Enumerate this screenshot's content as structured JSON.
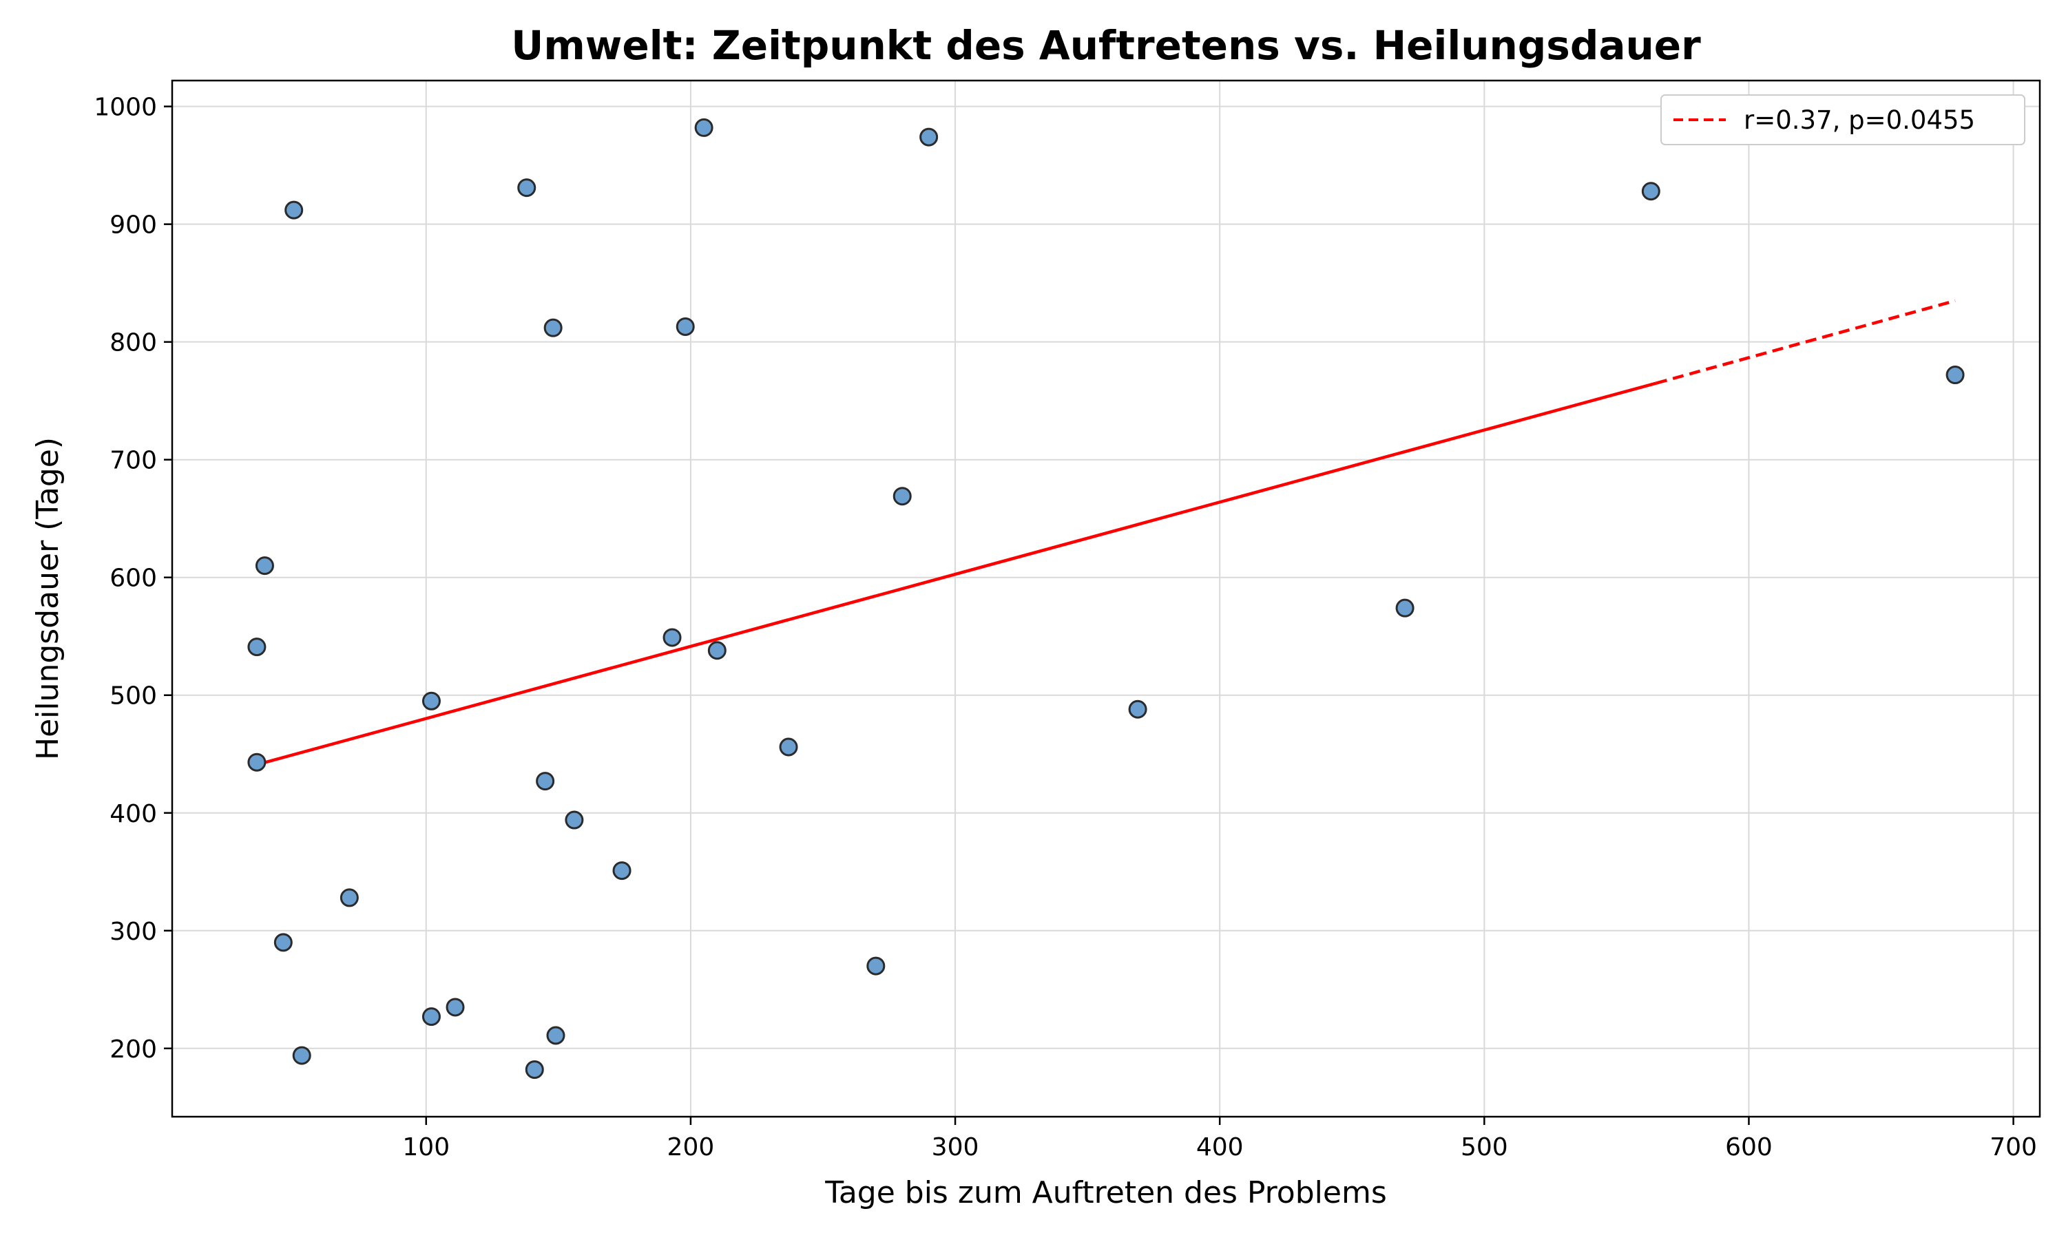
{
  "chart_data": {
    "type": "scatter",
    "title": "Umwelt: Zeitpunkt des Auftretens vs. Heilungsdauer",
    "xlabel": "Tage bis zum Auftreten des Problems",
    "ylabel": "Heilungsdauer (Tage)",
    "xlim": [
      4,
      710
    ],
    "ylim": [
      142,
      1022
    ],
    "xticks": [
      100,
      200,
      300,
      400,
      500,
      600,
      700
    ],
    "yticks": [
      200,
      300,
      400,
      500,
      600,
      700,
      800,
      900,
      1000
    ],
    "xtick_labels": [
      "100",
      "200",
      "300",
      "400",
      "500",
      "600",
      "700"
    ],
    "ytick_labels": [
      "200",
      "300",
      "400",
      "500",
      "600",
      "700",
      "800",
      "900",
      "1000"
    ],
    "grid": true,
    "legend_position": "top-right",
    "points": [
      {
        "x": 50,
        "y": 912
      },
      {
        "x": 138,
        "y": 931
      },
      {
        "x": 205,
        "y": 982
      },
      {
        "x": 290,
        "y": 974
      },
      {
        "x": 563,
        "y": 928
      },
      {
        "x": 148,
        "y": 812
      },
      {
        "x": 198,
        "y": 813
      },
      {
        "x": 678,
        "y": 772
      },
      {
        "x": 280,
        "y": 669
      },
      {
        "x": 39,
        "y": 610
      },
      {
        "x": 36,
        "y": 541
      },
      {
        "x": 193,
        "y": 549
      },
      {
        "x": 210,
        "y": 538
      },
      {
        "x": 470,
        "y": 574
      },
      {
        "x": 102,
        "y": 495
      },
      {
        "x": 369,
        "y": 488
      },
      {
        "x": 237,
        "y": 456
      },
      {
        "x": 36,
        "y": 443
      },
      {
        "x": 145,
        "y": 427
      },
      {
        "x": 156,
        "y": 394
      },
      {
        "x": 174,
        "y": 351
      },
      {
        "x": 71,
        "y": 328
      },
      {
        "x": 46,
        "y": 290
      },
      {
        "x": 270,
        "y": 270
      },
      {
        "x": 111,
        "y": 235
      },
      {
        "x": 102,
        "y": 227
      },
      {
        "x": 149,
        "y": 211
      },
      {
        "x": 53,
        "y": 194
      },
      {
        "x": 141,
        "y": 182
      }
    ],
    "trend_line": {
      "label": "r=0.37, p=0.0455",
      "solid_segment": {
        "x": [
          36,
          565
        ],
        "y": [
          441,
          765
        ]
      },
      "dashed_segment": {
        "x": [
          565,
          678
        ],
        "y": [
          765,
          835
        ]
      }
    },
    "colors": {
      "points_fill": "#6a9fd0",
      "points_stroke": "#2b2b2b",
      "trend": "#ff0000",
      "grid": "#d9d9d9",
      "axes": "#000000"
    }
  }
}
